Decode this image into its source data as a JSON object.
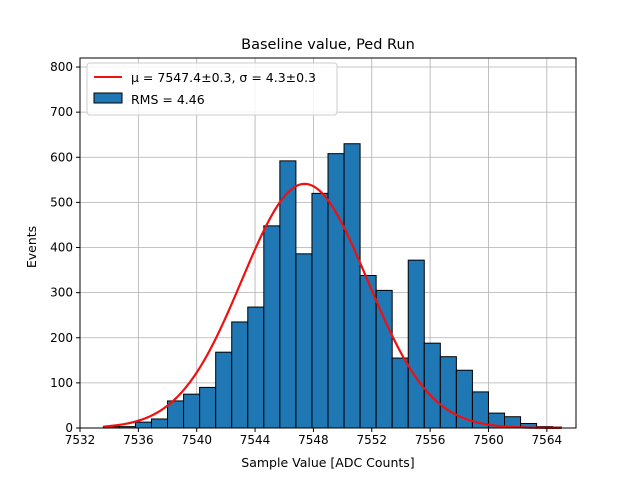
{
  "chart_data": {
    "type": "bar",
    "title": "Baseline value, Ped Run",
    "xlabel": "Sample Value [ADC Counts]",
    "ylabel": "Events",
    "xlim": [
      7532,
      7566
    ],
    "ylim": [
      0,
      820
    ],
    "xticks": [
      7532,
      7536,
      7540,
      7544,
      7548,
      7552,
      7556,
      7560,
      7564
    ],
    "yticks": [
      0,
      100,
      200,
      300,
      400,
      500,
      600,
      700,
      800
    ],
    "grid": true,
    "legend": {
      "placement": "top-left",
      "entries": [
        {
          "label_pre": "μ = 7547.4±0.3, ",
          "label_post": "σ = 4.3±0.3",
          "kind": "line",
          "color": "#ee1111"
        },
        {
          "label": "RMS = 4.46",
          "kind": "patch",
          "color": "#1f77b4"
        }
      ]
    },
    "histogram": {
      "name": "RMS = 4.46",
      "color": "#1f77b4",
      "bin_edges": [
        7533.6,
        7534.7,
        7535.8,
        7536.9,
        7538.0,
        7539.1,
        7540.2,
        7541.3,
        7542.4,
        7543.5,
        7544.6,
        7545.7,
        7546.8,
        7547.9,
        7549.0,
        7550.1,
        7551.2,
        7552.3,
        7553.4,
        7554.5,
        7555.6,
        7556.7,
        7557.8,
        7558.9,
        7560.0,
        7561.1,
        7562.2,
        7563.3,
        7564.4,
        7565.0
      ],
      "counts": [
        3,
        3,
        13,
        20,
        60,
        75,
        90,
        168,
        235,
        268,
        448,
        592,
        386,
        520,
        608,
        630,
        338,
        305,
        155,
        372,
        188,
        158,
        128,
        80,
        33,
        25,
        10,
        3,
        2
      ]
    },
    "fit": {
      "name": "Gaussian fit",
      "color": "#ee1111",
      "mu": 7547.4,
      "sigma": 4.3,
      "amplitude": 541,
      "x_range": [
        7533.6,
        7565.0
      ]
    }
  }
}
